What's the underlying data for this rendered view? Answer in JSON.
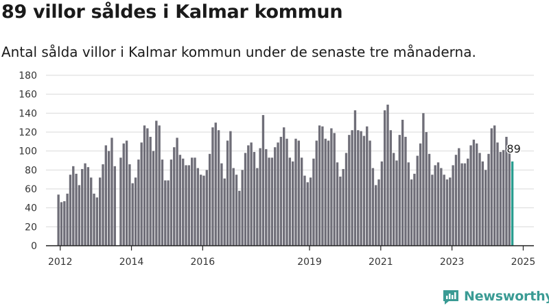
{
  "header": {
    "title": "89 villor såldes i Kalmar kommun",
    "subtitle": "Antal sålda villor i Kalmar kommun under de senaste tre månaderna."
  },
  "brand": {
    "name": "Newsworthy",
    "color": "#3a9b94"
  },
  "chart_data": {
    "type": "bar",
    "ylim": [
      0,
      180
    ],
    "yticks": [
      0,
      20,
      40,
      60,
      80,
      100,
      120,
      140,
      160,
      180
    ],
    "xlim": [
      2011.6,
      2025.3
    ],
    "xticks": [
      "2012",
      "2014",
      "2016",
      "2019",
      "2021",
      "2023",
      "2025"
    ],
    "xtick_positions": [
      2012,
      2014,
      2016,
      2019,
      2021,
      2023,
      2025
    ],
    "grid": true,
    "bar_color": "#6f6e78",
    "highlight_color": "#2a9d8f",
    "start": 2011.95,
    "step": 0.0833,
    "gaps": [
      20
    ],
    "values": [
      54,
      46,
      47,
      55,
      75,
      84,
      76,
      64,
      81,
      87,
      83,
      72,
      55,
      51,
      72,
      86,
      106,
      100,
      114,
      84,
      93,
      108,
      111,
      86,
      66,
      72,
      91,
      109,
      127,
      124,
      115,
      100,
      132,
      127,
      91,
      69,
      69,
      91,
      104,
      114,
      96,
      92,
      85,
      85,
      93,
      93,
      82,
      75,
      74,
      80,
      97,
      125,
      130,
      122,
      87,
      71,
      111,
      121,
      82,
      75,
      58,
      80,
      98,
      106,
      109,
      99,
      82,
      103,
      138,
      102,
      93,
      93,
      104,
      109,
      115,
      125,
      113,
      93,
      89,
      113,
      111,
      93,
      74,
      67,
      72,
      92,
      111,
      127,
      126,
      113,
      111,
      124,
      119,
      88,
      73,
      81,
      98,
      117,
      122,
      143,
      122,
      121,
      116,
      126,
      111,
      82,
      64,
      70,
      89,
      143,
      149,
      122,
      98,
      90,
      117,
      133,
      115,
      88,
      70,
      76,
      95,
      108,
      140,
      120,
      97,
      75,
      85,
      88,
      82,
      75,
      70,
      72,
      85,
      96,
      103,
      87,
      87,
      92,
      106,
      112,
      108,
      98,
      89,
      80,
      97,
      124,
      127,
      109,
      99,
      101,
      115,
      99,
      89
    ],
    "highlight_label": "89"
  }
}
